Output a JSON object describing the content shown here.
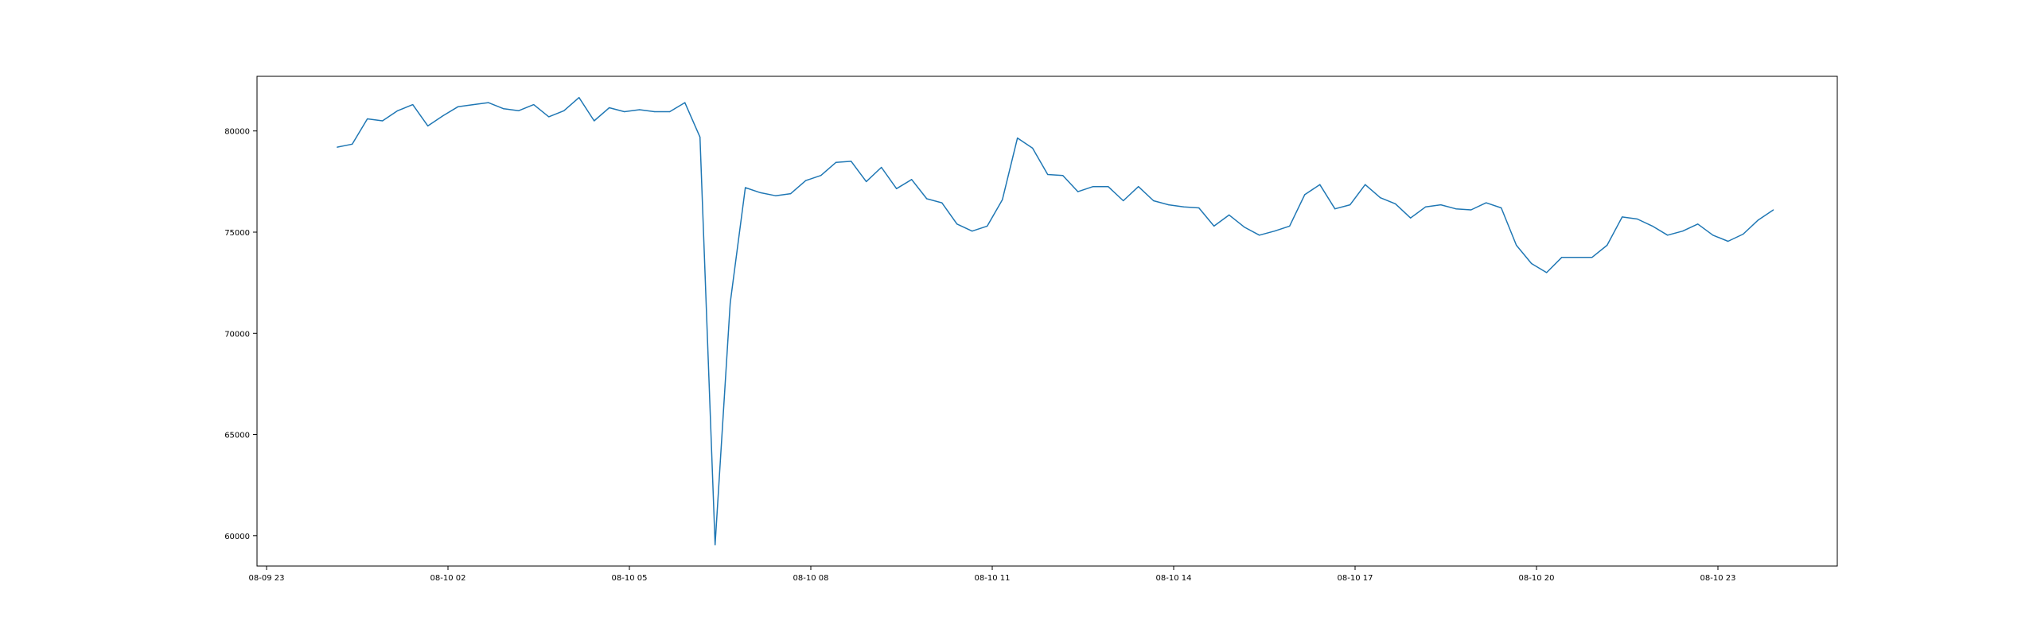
{
  "chart_data": {
    "type": "line",
    "title": "",
    "xlabel": "",
    "ylabel": "",
    "grid": false,
    "colors": {
      "line": "#1f77b4",
      "axes": "#000000",
      "background": "#ffffff"
    },
    "x_tick_labels": [
      "08-09 23",
      "08-10 02",
      "08-10 05",
      "08-10 08",
      "08-10 11",
      "08-10 14",
      "08-10 17",
      "08-10 20",
      "08-10 23"
    ],
    "y_tick_labels": [
      "60000",
      "65000",
      "70000",
      "75000",
      "80000"
    ],
    "y_ticks": [
      60000,
      65000,
      70000,
      75000,
      80000
    ],
    "ylim": [
      58500,
      82700
    ],
    "x_start": "08-10 00:10",
    "x_interval_minutes": 15,
    "series": [
      {
        "values": [
          79200,
          79350,
          80600,
          80500,
          81000,
          81300,
          80250,
          80750,
          81200,
          81300,
          81400,
          81100,
          81000,
          81300,
          80700,
          81000,
          81650,
          80500,
          81150,
          80950,
          81050,
          80950,
          80950,
          81400,
          79700,
          59550,
          71500,
          77200,
          76950,
          76800,
          76900,
          77550,
          77800,
          78450,
          78500,
          77500,
          78200,
          77150,
          77600,
          76650,
          76450,
          75400,
          75050,
          75300,
          76600,
          79650,
          79150,
          77850,
          77800,
          77000,
          77250,
          77250,
          76550,
          77250,
          76550,
          76350,
          76250,
          76200,
          75300,
          75850,
          75250,
          74850,
          75050,
          75300,
          76850,
          77350,
          76150,
          76350,
          77350,
          76700,
          76400,
          75700,
          76250,
          76350,
          76150,
          76100,
          76450,
          76200,
          74350,
          73450,
          73000,
          73750,
          73750,
          73750,
          74350,
          75750,
          75650,
          75300,
          74850,
          75050,
          75400,
          74850,
          74550,
          74900,
          75600,
          76100
        ]
      }
    ]
  }
}
